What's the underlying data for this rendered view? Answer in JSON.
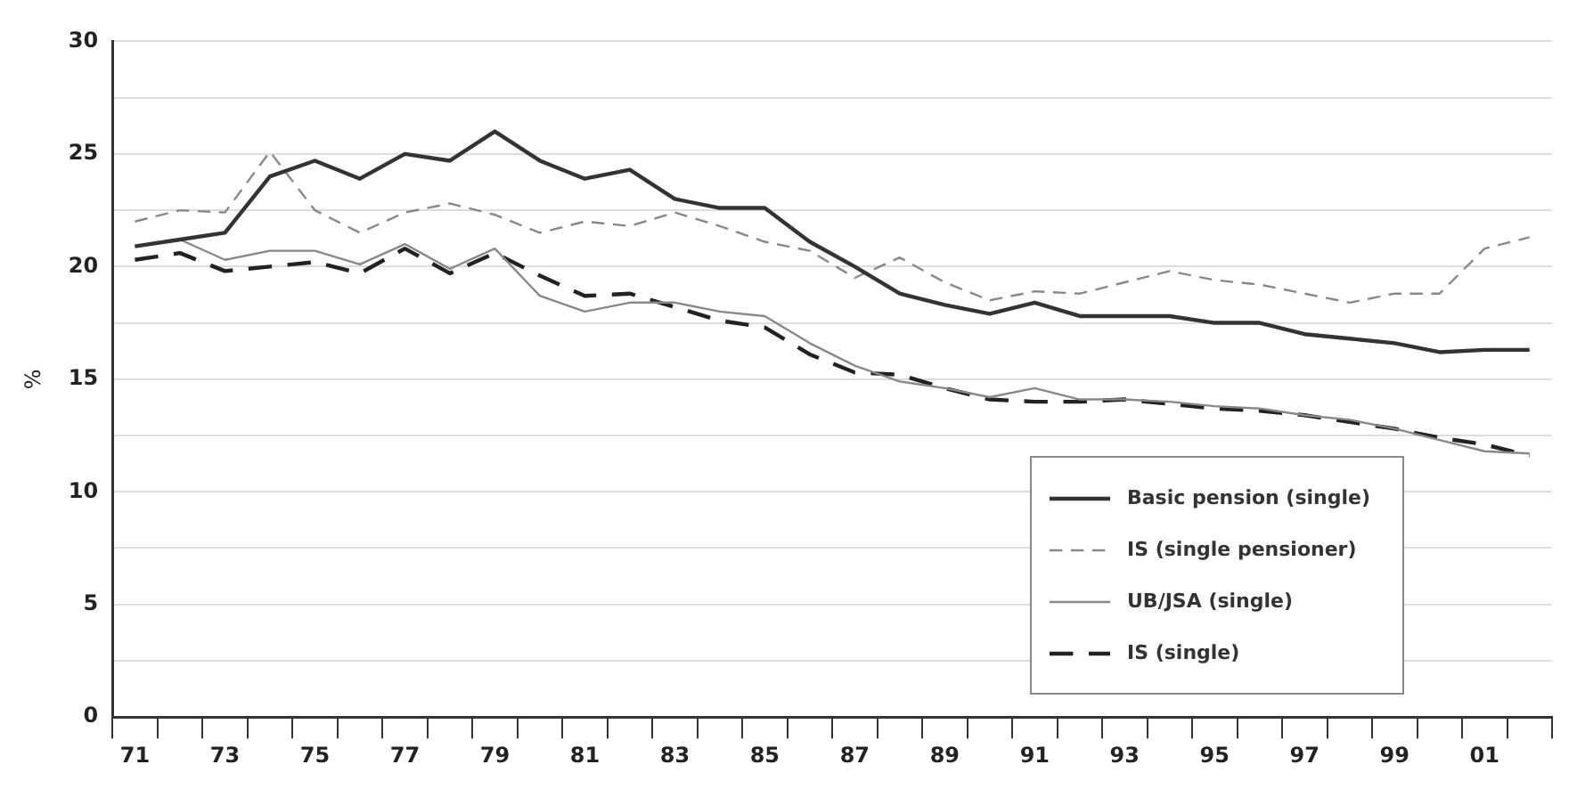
{
  "chart_data": {
    "type": "line",
    "ylabel": "%",
    "categories": [
      "71",
      null,
      "73",
      null,
      "75",
      null,
      "77",
      null,
      "79",
      null,
      "81",
      null,
      "83",
      null,
      "85",
      null,
      "87",
      null,
      "89",
      null,
      "91",
      null,
      "93",
      null,
      "95",
      null,
      "97",
      null,
      "99",
      null,
      "01",
      null
    ],
    "series": [
      {
        "name": "Basic pension (single)",
        "color": "#333333",
        "line_style": "solid",
        "values": [
          20.9,
          21.2,
          21.5,
          24.0,
          24.7,
          23.9,
          25.0,
          24.7,
          26.0,
          24.7,
          23.9,
          24.3,
          23.0,
          22.6,
          22.6,
          21.1,
          20.0,
          18.8,
          18.3,
          17.9,
          18.4,
          17.8,
          17.8,
          17.8,
          17.5,
          17.5,
          17.0,
          16.8,
          16.6,
          16.2,
          16.3,
          16.3
        ]
      },
      {
        "name": "IS (single pensioner)",
        "color": "#888888",
        "line_style": "dashed",
        "values": [
          22.0,
          22.5,
          22.4,
          25.1,
          22.5,
          21.5,
          22.4,
          22.8,
          22.3,
          21.5,
          22.0,
          21.8,
          22.4,
          21.8,
          21.1,
          20.7,
          19.5,
          20.4,
          19.3,
          18.5,
          18.9,
          18.8,
          19.3,
          19.8,
          19.4,
          19.2,
          18.8,
          18.4,
          18.8,
          18.8,
          20.8,
          21.3
        ]
      },
      {
        "name": "UB/JSA (single)",
        "color": "#888888",
        "line_style": "solid",
        "values": [
          20.9,
          21.2,
          20.3,
          20.7,
          20.7,
          20.1,
          21.0,
          19.9,
          20.8,
          18.7,
          18.0,
          18.4,
          18.4,
          18.0,
          17.8,
          16.6,
          15.6,
          14.9,
          14.6,
          14.2,
          14.6,
          14.1,
          14.1,
          14.0,
          13.8,
          13.7,
          13.4,
          13.2,
          12.8,
          12.3,
          11.8,
          11.7
        ]
      },
      {
        "name": "IS (single)",
        "color": "#222222",
        "line_style": "dashed",
        "values": [
          20.3,
          20.6,
          19.8,
          20.0,
          20.2,
          19.7,
          20.8,
          19.7,
          20.6,
          19.6,
          18.7,
          18.8,
          18.2,
          17.6,
          17.3,
          16.1,
          15.3,
          15.2,
          14.6,
          14.1,
          14.0,
          14.0,
          14.1,
          13.9,
          13.7,
          13.6,
          13.4,
          13.1,
          12.8,
          12.4,
          12.1,
          11.6
        ]
      }
    ],
    "ylim": [
      0,
      30
    ],
    "yticks": [
      0,
      {
        "value": 2.5,
        "label": null
      },
      5,
      {
        "value": 7.5,
        "label": null
      },
      10,
      {
        "value": 12.5,
        "label": null
      },
      15,
      {
        "value": 17.5,
        "label": null
      },
      20,
      {
        "value": 22.5,
        "label": null
      },
      25,
      {
        "value": 27.5,
        "label": null
      },
      30
    ],
    "grid": "y",
    "legend": "bottom right",
    "marker": "none"
  }
}
